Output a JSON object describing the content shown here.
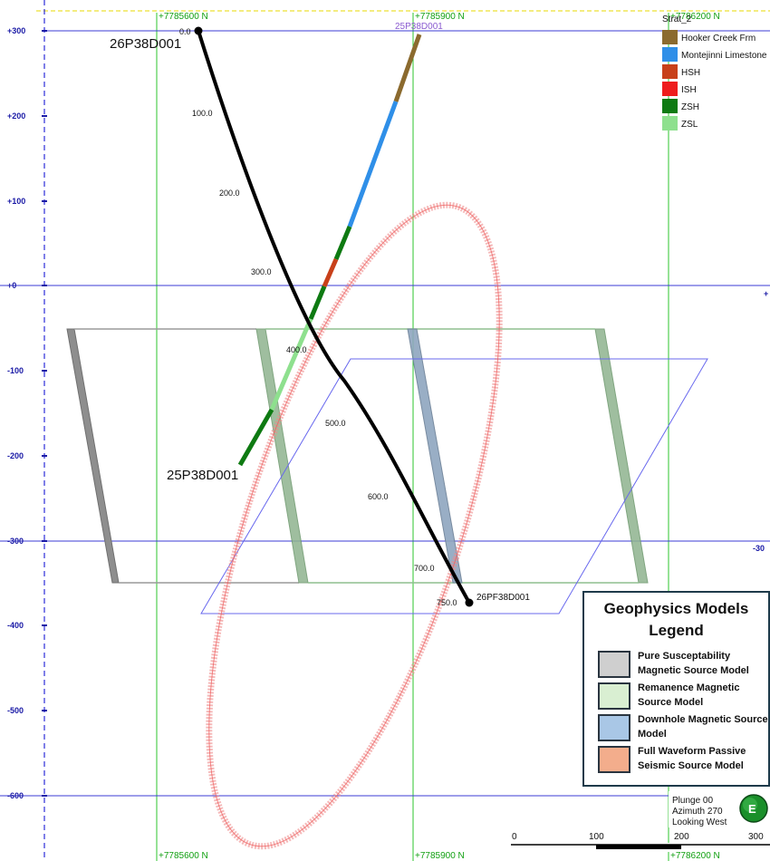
{
  "section": {
    "north_labels_top": [
      "+7785600 N",
      "+7785900 N",
      "+7786200 N"
    ],
    "north_labels_bottom": [
      "+7785600 N",
      "+7785900 N",
      "+7786200 N"
    ],
    "elev_labels": [
      {
        "text": "+300",
        "value": 300
      },
      {
        "text": "+200",
        "value": 200
      },
      {
        "text": "+100",
        "value": 100
      },
      {
        "text": "+0",
        "value": 0
      },
      {
        "text": "-100",
        "value": -100
      },
      {
        "text": "-200",
        "value": -200
      },
      {
        "text": "-300",
        "value": -300
      },
      {
        "text": "-400",
        "value": -400
      },
      {
        "text": "-500",
        "value": -500
      },
      {
        "text": "-600",
        "value": -600
      }
    ],
    "right_edge_labels": [
      "+",
      "-30"
    ]
  },
  "holes": {
    "hole1": {
      "name": "26P38D001",
      "end_name": "26PF38D001",
      "depths": [
        "0.0",
        "100.0",
        "200.0",
        "300.0",
        "400.0",
        "500.0",
        "600.0",
        "700.0",
        "750.0"
      ]
    },
    "hole2": {
      "name": "25P38D001",
      "collar_name": "25P38D001"
    }
  },
  "strat_legend": {
    "title": "Strat_2",
    "items": [
      {
        "label": "Hooker Creek Frm",
        "color": "#8b6a2e"
      },
      {
        "label": "Montejinni Limestone",
        "color": "#2f8fe8"
      },
      {
        "label": "HSH",
        "color": "#c8401a"
      },
      {
        "label": "ISH",
        "color": "#ee1c1c"
      },
      {
        "label": "ZSH",
        "color": "#0e7a12"
      },
      {
        "label": "ZSL",
        "color": "#8ee08e"
      }
    ]
  },
  "geo_legend": {
    "title": "Geophysics Models Legend",
    "items": [
      {
        "label": "Pure Susceptability Magnetic  Source Model",
        "color": "#cfcfcf"
      },
      {
        "label": "Remanence Magnetic Source Model",
        "color": "#d9efd2"
      },
      {
        "label": "Downhole Magnetic Source Model",
        "color": "#a9c7e6"
      },
      {
        "label": "Full Waveform Passive Seismic Source Model",
        "color": "#f3ad8c"
      }
    ]
  },
  "orientation": {
    "plunge": "Plunge 00",
    "azimuth": "Azimuth 270",
    "looking": "Looking West",
    "compass_letter": "E"
  },
  "scale_bar": {
    "ticks": [
      "0",
      "100",
      "200",
      "300"
    ]
  }
}
